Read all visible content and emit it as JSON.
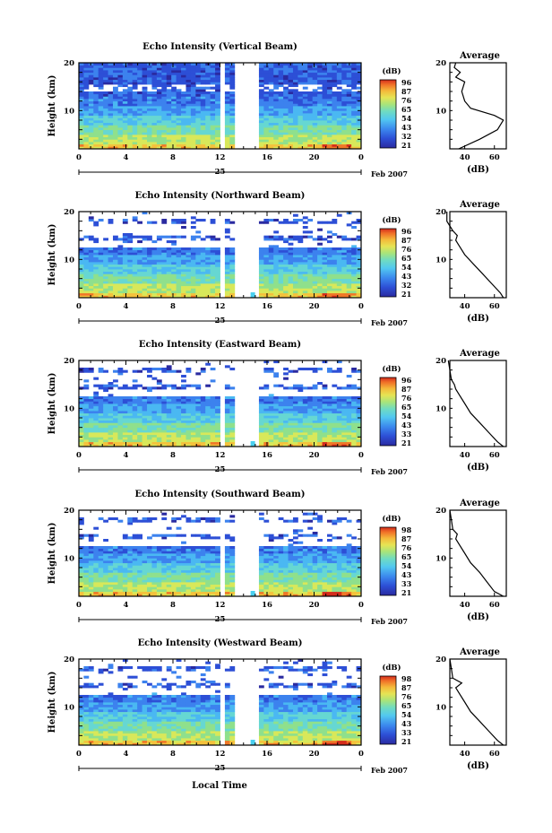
{
  "chart_data": [
    {
      "type": "heatmap",
      "title": "Echo Intensity (Vertical Beam)",
      "ylabel": "Height (km)",
      "ylim": [
        2,
        20
      ],
      "xlim": [
        0,
        24
      ],
      "x_ticks": [
        "0",
        "4",
        "8",
        "12",
        "16",
        "20",
        "0"
      ],
      "y_ticks": [
        "20",
        "10"
      ],
      "date_tick": "25",
      "date_label": "Feb 2007",
      "colorbar": {
        "unit": "(dB)",
        "labels": [
          "96",
          "87",
          "76",
          "65",
          "54",
          "43",
          "32",
          "21"
        ]
      },
      "data_gap": {
        "start_hour": 13.4,
        "end_hour": 15.5
      },
      "average_profile": {
        "title": "Average",
        "xlabel": "(dB)",
        "x_ticks": [
          "40",
          "60"
        ],
        "y_ticks": [
          "20",
          "10"
        ],
        "points": [
          [
            36,
            2
          ],
          [
            50,
            4
          ],
          [
            62,
            6
          ],
          [
            66,
            8
          ],
          [
            60,
            9
          ],
          [
            44,
            10.5
          ],
          [
            40,
            12
          ],
          [
            38,
            14
          ],
          [
            40,
            16
          ],
          [
            34,
            17
          ],
          [
            37,
            18
          ],
          [
            33,
            19
          ],
          [
            34,
            20
          ]
        ]
      }
    },
    {
      "type": "heatmap",
      "title": "Echo Intensity (Northward Beam)",
      "ylabel": "Height (km)",
      "ylim": [
        2,
        20
      ],
      "xlim": [
        0,
        24
      ],
      "x_ticks": [
        "0",
        "4",
        "8",
        "12",
        "16",
        "20",
        "0"
      ],
      "y_ticks": [
        "20",
        "10"
      ],
      "date_tick": "25",
      "date_label": "Feb 2007",
      "colorbar": {
        "unit": "(dB)",
        "labels": [
          "96",
          "87",
          "76",
          "65",
          "54",
          "43",
          "32",
          "21"
        ]
      },
      "data_gap": {
        "start_hour": 13.4,
        "end_hour": 15.5
      },
      "average_profile": {
        "title": "Average",
        "xlabel": "(dB)",
        "x_ticks": [
          "40",
          "60"
        ],
        "y_ticks": [
          "20",
          "10"
        ],
        "points": [
          [
            66,
            2
          ],
          [
            64,
            3
          ],
          [
            58,
            5
          ],
          [
            52,
            7
          ],
          [
            46,
            9
          ],
          [
            40,
            11
          ],
          [
            36,
            13
          ],
          [
            34,
            14
          ],
          [
            35,
            15
          ],
          [
            32,
            16
          ],
          [
            30,
            17
          ],
          [
            28,
            18
          ],
          [
            28,
            20
          ]
        ]
      }
    },
    {
      "type": "heatmap",
      "title": "Echo Intensity (Eastward Beam)",
      "ylabel": "Height (km)",
      "ylim": [
        2,
        20
      ],
      "xlim": [
        0,
        24
      ],
      "x_ticks": [
        "0",
        "4",
        "8",
        "12",
        "16",
        "20",
        "0"
      ],
      "y_ticks": [
        "20",
        "10"
      ],
      "date_tick": "25",
      "date_label": "Feb 2007",
      "colorbar": {
        "unit": "(dB)",
        "labels": [
          "96",
          "87",
          "76",
          "65",
          "54",
          "43",
          "33",
          "21"
        ]
      },
      "data_gap": {
        "start_hour": 13.4,
        "end_hour": 15.5
      },
      "average_profile": {
        "title": "Average",
        "xlabel": "(dB)",
        "x_ticks": [
          "40",
          "60"
        ],
        "y_ticks": [
          "20",
          "10"
        ],
        "points": [
          [
            66,
            2
          ],
          [
            62,
            3
          ],
          [
            56,
            5
          ],
          [
            50,
            7
          ],
          [
            44,
            9
          ],
          [
            40,
            11
          ],
          [
            36,
            13
          ],
          [
            34,
            14
          ],
          [
            33,
            15
          ],
          [
            31,
            16
          ],
          [
            30,
            18
          ],
          [
            29,
            20
          ]
        ]
      }
    },
    {
      "type": "heatmap",
      "title": "Echo Intensity (Southward Beam)",
      "ylabel": "Height (km)",
      "ylim": [
        2,
        20
      ],
      "xlim": [
        0,
        24
      ],
      "x_ticks": [
        "0",
        "4",
        "8",
        "12",
        "16",
        "20",
        "0"
      ],
      "y_ticks": [
        "20",
        "10"
      ],
      "date_tick": "25",
      "date_label": "Feb 2007",
      "colorbar": {
        "unit": "(dB)",
        "labels": [
          "98",
          "87",
          "76",
          "65",
          "54",
          "43",
          "33",
          "21"
        ]
      },
      "data_gap": {
        "start_hour": 13.4,
        "end_hour": 15.5
      },
      "average_profile": {
        "title": "Average",
        "xlabel": "(dB)",
        "x_ticks": [
          "40",
          "60"
        ],
        "y_ticks": [
          "20",
          "10"
        ],
        "points": [
          [
            66,
            2
          ],
          [
            60,
            3
          ],
          [
            55,
            5
          ],
          [
            50,
            7
          ],
          [
            44,
            9
          ],
          [
            40,
            11
          ],
          [
            36,
            13
          ],
          [
            34,
            14
          ],
          [
            35,
            15
          ],
          [
            32,
            16
          ],
          [
            31,
            18
          ],
          [
            30,
            20
          ]
        ]
      }
    },
    {
      "type": "heatmap",
      "title": "Echo Intensity (Westward Beam)",
      "ylabel": "Height (km)",
      "ylim": [
        2,
        20
      ],
      "xlim": [
        0,
        24
      ],
      "x_ticks": [
        "0",
        "4",
        "8",
        "12",
        "16",
        "20",
        "0"
      ],
      "y_ticks": [
        "20",
        "10"
      ],
      "date_tick": "25",
      "date_label": "Feb 2007",
      "colorbar": {
        "unit": "(dB)",
        "labels": [
          "98",
          "87",
          "76",
          "65",
          "54",
          "43",
          "33",
          "21"
        ]
      },
      "data_gap": {
        "start_hour": 13.4,
        "end_hour": 15.5
      },
      "average_profile": {
        "title": "Average",
        "xlabel": "(dB)",
        "x_ticks": [
          "40",
          "60"
        ],
        "y_ticks": [
          "20",
          "10"
        ],
        "points": [
          [
            66,
            2
          ],
          [
            62,
            3
          ],
          [
            56,
            5
          ],
          [
            50,
            7
          ],
          [
            44,
            9
          ],
          [
            40,
            11
          ],
          [
            36,
            13
          ],
          [
            34,
            14
          ],
          [
            38,
            15
          ],
          [
            32,
            16
          ],
          [
            31,
            18
          ],
          [
            30,
            20
          ]
        ]
      }
    }
  ],
  "footer": {
    "xlabel": "Local Time"
  },
  "colors": {
    "colormap": [
      "#2a2aa0",
      "#2d4fd6",
      "#3c82ee",
      "#4ab8f2",
      "#66d7d2",
      "#8fe08c",
      "#d8e85a",
      "#f4c23c",
      "#f07828",
      "#d42c1c"
    ]
  }
}
